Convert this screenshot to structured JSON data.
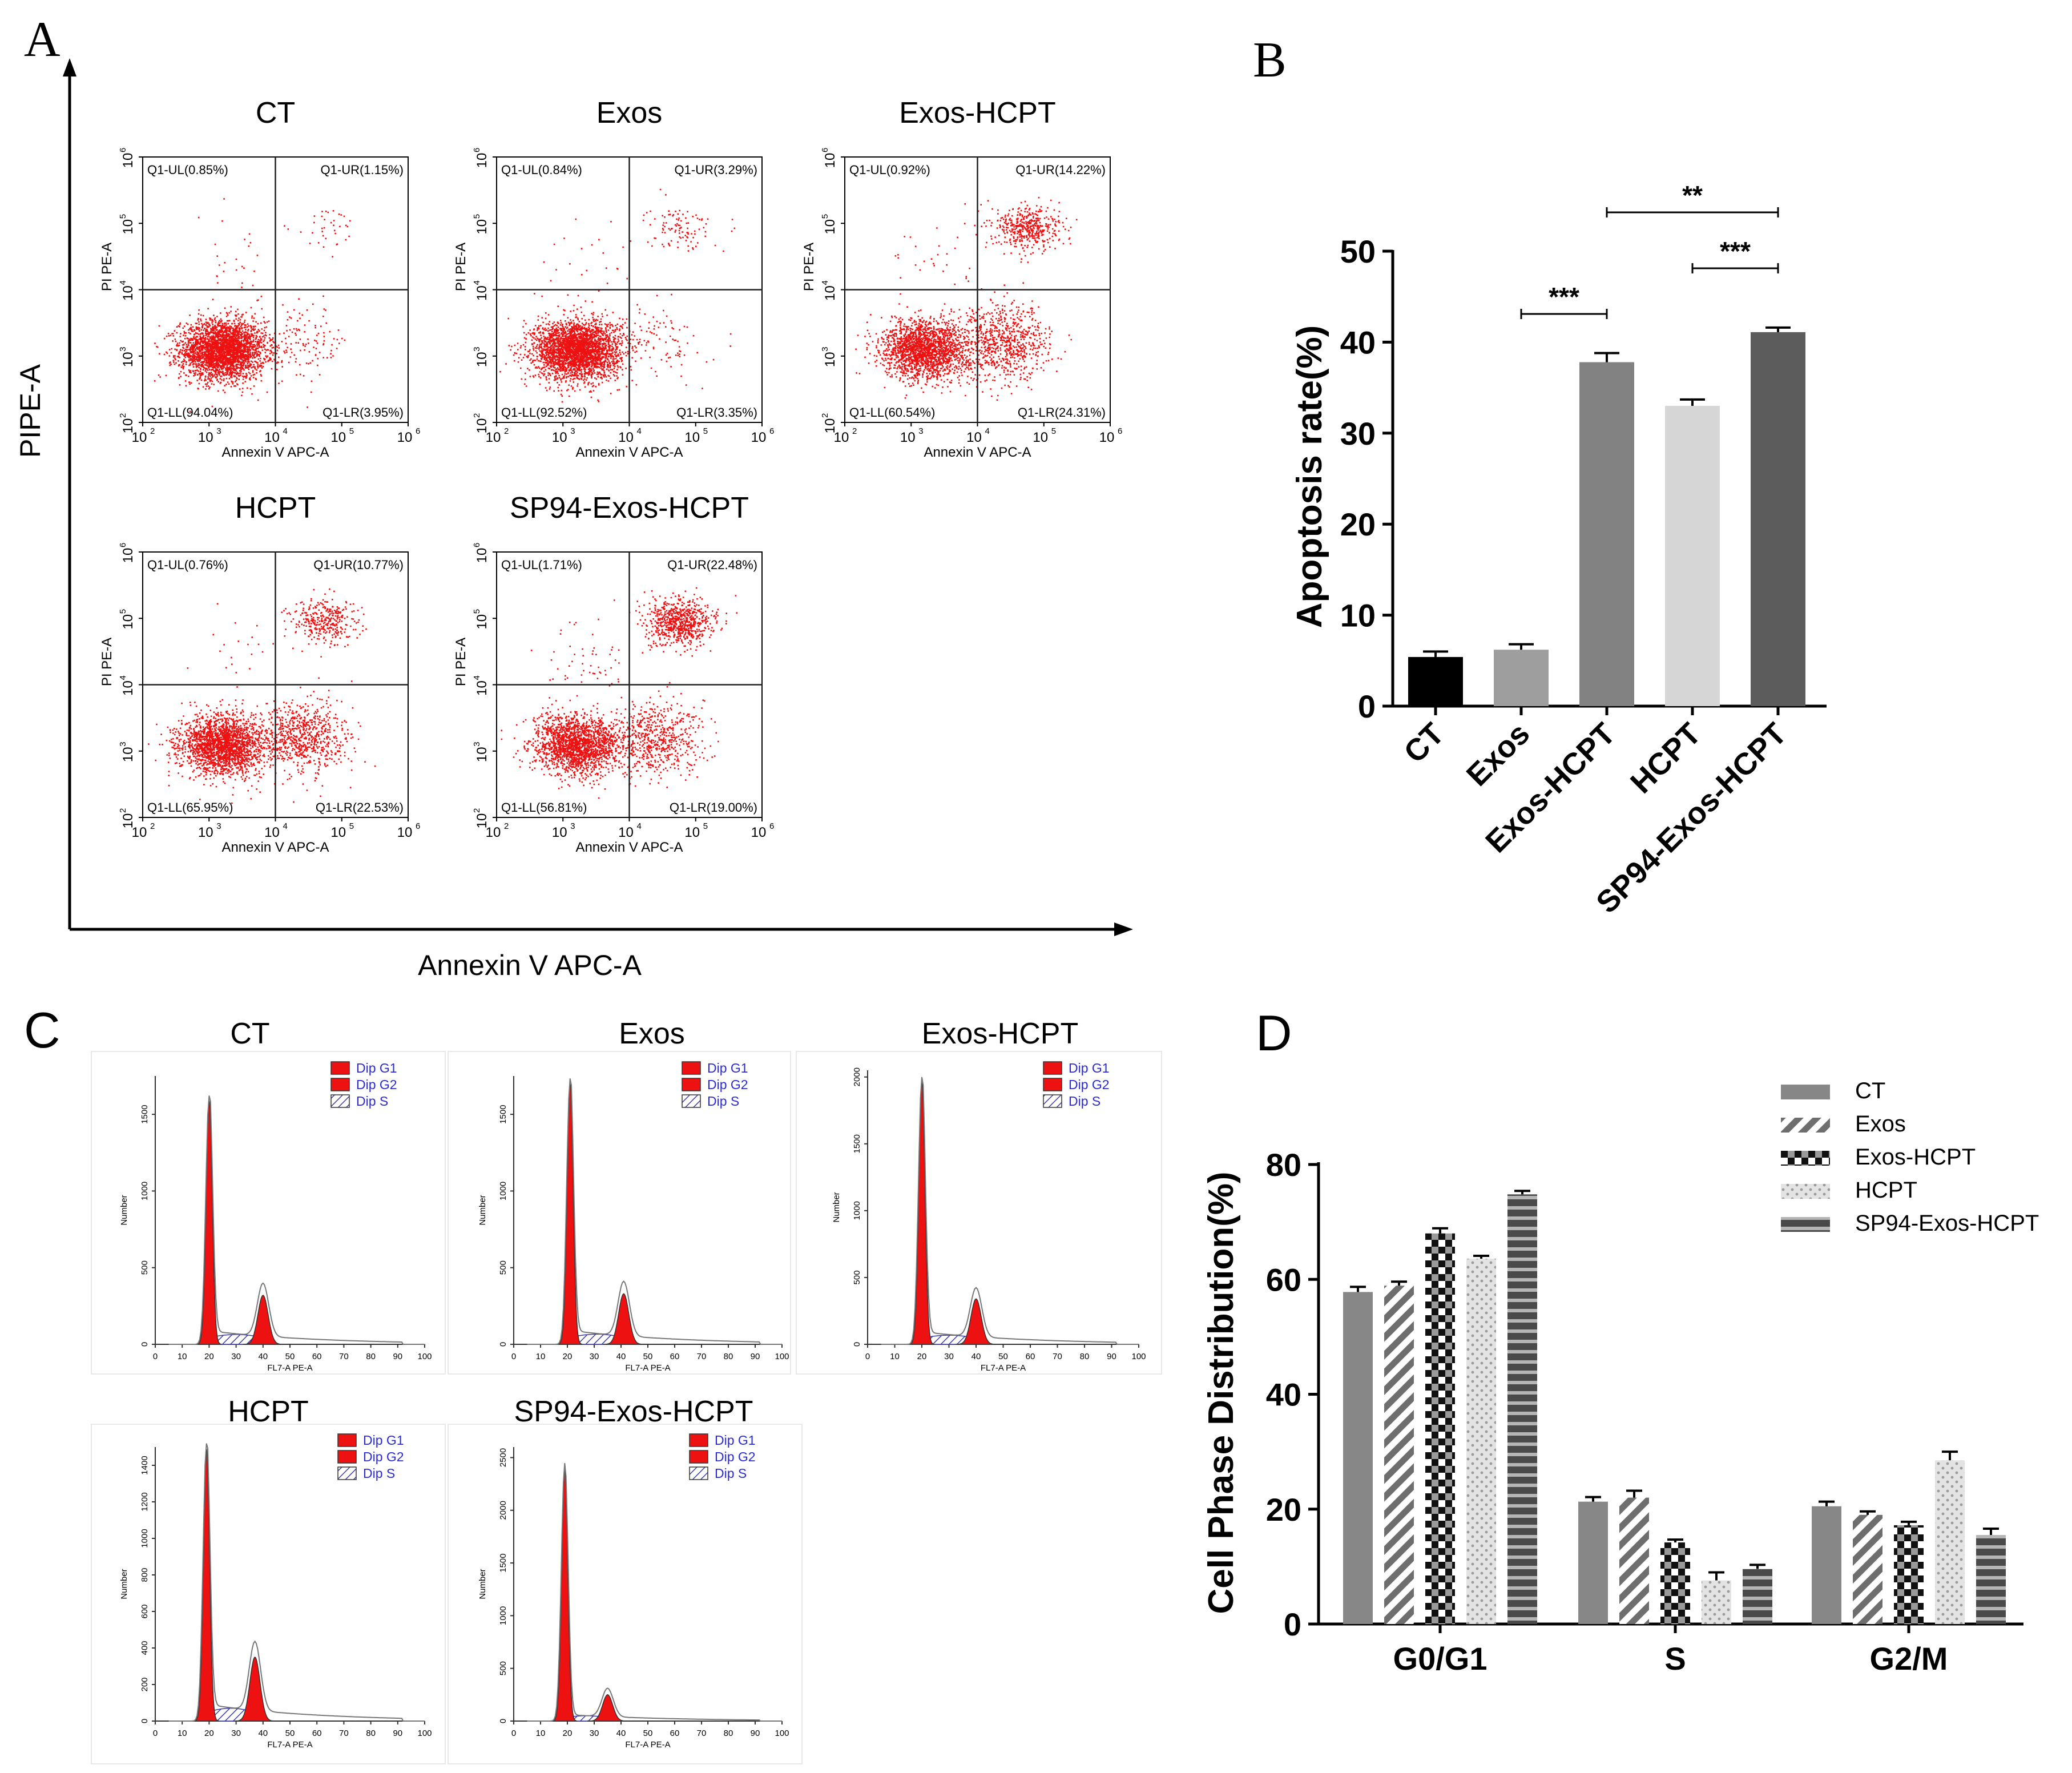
{
  "panel_letters": [
    "A",
    "B",
    "C",
    "D"
  ],
  "chart_data": [
    {
      "panel": "A",
      "type": "scatter",
      "subtype": "flow-cytometry-quadrant",
      "ylabel": "PIPE-A",
      "xlabel": "Annexin V APC-A",
      "plot_xlabel": "Annexin V APC-A",
      "plot_ylabel": "PI PE-A",
      "tick_exponents": [
        "2",
        "3",
        "4",
        "5",
        "6"
      ],
      "color": "#ee1111",
      "plots": [
        {
          "title": "CT",
          "quadrants": {
            "UL": "Q1-UL(0.85%)",
            "UR": "Q1-UR(1.15%)",
            "LL": "Q1-LL(94.04%)",
            "LR": "Q1-LR(3.95%)"
          },
          "ll": 94.04,
          "lr": 3.95,
          "ul": 0.85,
          "ur": 1.15
        },
        {
          "title": "Exos",
          "quadrants": {
            "UL": "Q1-UL(0.84%)",
            "UR": "Q1-UR(3.29%)",
            "LL": "Q1-LL(92.52%)",
            "LR": "Q1-LR(3.35%)"
          },
          "ll": 92.52,
          "lr": 3.35,
          "ul": 0.84,
          "ur": 3.29
        },
        {
          "title": "Exos-HCPT",
          "quadrants": {
            "UL": "Q1-UL(0.92%)",
            "UR": "Q1-UR(14.22%)",
            "LL": "Q1-LL(60.54%)",
            "LR": "Q1-LR(24.31%)"
          },
          "ll": 60.54,
          "lr": 24.31,
          "ul": 0.92,
          "ur": 14.22
        },
        {
          "title": "HCPT",
          "quadrants": {
            "UL": "Q1-UL(0.76%)",
            "UR": "Q1-UR(10.77%)",
            "LL": "Q1-LL(65.95%)",
            "LR": "Q1-LR(22.53%)"
          },
          "ll": 65.95,
          "lr": 22.53,
          "ul": 0.76,
          "ur": 10.77
        },
        {
          "title": "SP94-Exos-HCPT",
          "quadrants": {
            "UL": "Q1-UL(1.71%)",
            "UR": "Q1-UR(22.48%)",
            "LL": "Q1-LL(56.81%)",
            "LR": "Q1-LR(19.00%)"
          },
          "ll": 56.81,
          "lr": 19.0,
          "ul": 1.71,
          "ur": 22.48
        }
      ]
    },
    {
      "panel": "B",
      "type": "bar",
      "ylabel": "Apoptosis rate(%)",
      "xlabel": "",
      "ylim": [
        0,
        50
      ],
      "yticks": [
        0,
        10,
        20,
        30,
        40,
        50
      ],
      "categories": [
        "CT",
        "Exos",
        "Exos-HCPT",
        "HCPT",
        "SP94-Exos-HCPT"
      ],
      "values": [
        5.4,
        6.2,
        37.8,
        33.0,
        41.1
      ],
      "errors": [
        0.6,
        0.6,
        1.0,
        0.7,
        0.5
      ],
      "colors": [
        "#000000",
        "#9e9e9e",
        "#828282",
        "#d6d6d6",
        "#5c5c5c"
      ],
      "significance": [
        {
          "from": "Exos",
          "to": "Exos-HCPT",
          "label": "***"
        },
        {
          "from": "HCPT",
          "to": "SP94-Exos-HCPT",
          "label": "***"
        },
        {
          "from": "Exos-HCPT",
          "to": "SP94-Exos-HCPT",
          "label": "**"
        }
      ]
    },
    {
      "panel": "C",
      "type": "area",
      "subtype": "cell-cycle-histogram",
      "xlabel": "FL7-A PE-A",
      "ylabel": "Number",
      "xticks": [
        0,
        10,
        20,
        30,
        40,
        50,
        60,
        70,
        80,
        90,
        100
      ],
      "legend": [
        "Dip G1",
        "Dip G2",
        "Dip S"
      ],
      "plots": [
        {
          "title": "CT",
          "yticks": [
            0,
            500,
            1000,
            1500
          ],
          "ymax": 1750,
          "g1_center": 20,
          "g1_height": 1590,
          "g2_center": 40,
          "g2_height": 320
        },
        {
          "title": "Exos",
          "yticks": [
            0,
            500,
            1000,
            1500
          ],
          "ymax": 1750,
          "g1_center": 21,
          "g1_height": 1700,
          "g2_center": 41,
          "g2_height": 330
        },
        {
          "title": "Exos-HCPT",
          "yticks": [
            0,
            500,
            1000,
            1500,
            2000
          ],
          "ymax": 2050,
          "g1_center": 20,
          "g1_height": 1960,
          "g2_center": 40,
          "g2_height": 340
        },
        {
          "title": "HCPT",
          "yticks": [
            0,
            200,
            400,
            600,
            800,
            1000,
            1200,
            1400
          ],
          "ymax": 1500,
          "g1_center": 19,
          "g1_height": 1490,
          "g2_center": 37,
          "g2_height": 350
        },
        {
          "title": "SP94-Exos-HCPT",
          "yticks": [
            0,
            500,
            1000,
            1500,
            2000,
            2500
          ],
          "ymax": 2600,
          "g1_center": 19,
          "g1_height": 2400,
          "g2_center": 35,
          "g2_height": 250
        }
      ]
    },
    {
      "panel": "D",
      "type": "bar",
      "ylabel": "Cell Phase Distribution(%)",
      "xlabel": "",
      "ylim": [
        0,
        80
      ],
      "yticks": [
        0,
        20,
        40,
        60,
        80
      ],
      "categories": [
        "G0/G1",
        "S",
        "G2/M"
      ],
      "series": [
        {
          "name": "CT",
          "values": [
            57.8,
            21.3,
            20.5
          ],
          "errors": [
            0.9,
            0.8,
            0.8
          ]
        },
        {
          "name": "Exos",
          "values": [
            58.9,
            22.0,
            19.0
          ],
          "errors": [
            0.7,
            1.2,
            0.6
          ]
        },
        {
          "name": "Exos-HCPT",
          "values": [
            68.0,
            14.2,
            17.2
          ],
          "errors": [
            0.9,
            0.5,
            0.6
          ]
        },
        {
          "name": "HCPT",
          "values": [
            63.6,
            7.6,
            28.5
          ],
          "errors": [
            0.5,
            1.4,
            1.5
          ]
        },
        {
          "name": "SP94-Exos-HCPT",
          "values": [
            74.8,
            9.6,
            15.5
          ],
          "errors": [
            0.6,
            0.7,
            1.1
          ]
        }
      ],
      "legend_position": "top-right"
    }
  ]
}
